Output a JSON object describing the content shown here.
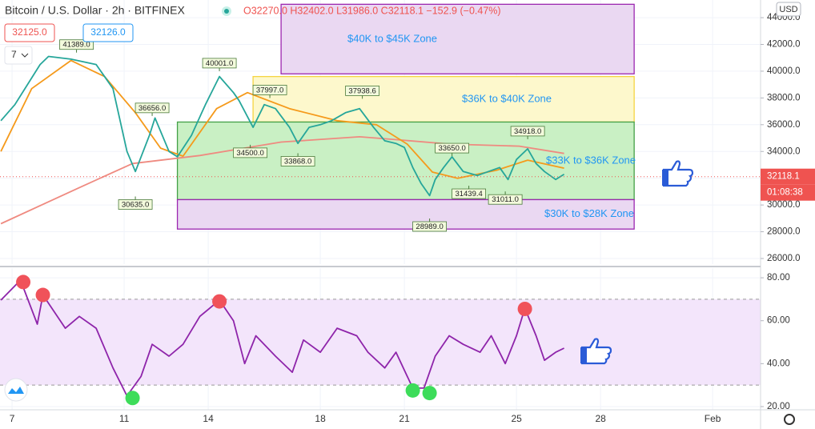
{
  "header": {
    "symbol": "Bitcoin / U.S. Dollar · 2h · BITFINEX",
    "ohlc": "O32270.0 H32402.0 L31986.0 C32118.1 −152.9 (−0.47%)",
    "sell": "32125.0",
    "buy": "32126.0",
    "interval": "7",
    "currency": "USD",
    "countdown": "01:08:38"
  },
  "chart_data": [
    {
      "type": "line",
      "xlim": [
        6.57,
        33.71
      ],
      "xticks": [
        7,
        11,
        14,
        18,
        21,
        25,
        28,
        {
          "value": 32,
          "label": "Feb"
        }
      ],
      "ylim": [
        25580,
        45320
      ],
      "yticks": [
        {
          "value": 26000,
          "label": "26000.0"
        },
        {
          "value": 28000,
          "label": "28000.0"
        },
        {
          "value": 30000,
          "label": "30000.0"
        },
        {
          "value": 32000,
          "label": "32000.0"
        },
        {
          "value": 34000,
          "label": "34000.0"
        },
        {
          "value": 36000,
          "label": "36000.0"
        },
        {
          "value": 38000,
          "label": "38000.0"
        },
        {
          "value": 40000,
          "label": "40000.0"
        },
        {
          "value": 42000,
          "label": "42000.0"
        },
        {
          "value": 44000,
          "label": "44000.0"
        }
      ],
      "grid": true,
      "series": [
        {
          "color": "#26a69a",
          "x": [
            6.6,
            7.1,
            8.0,
            8.3,
            9.1,
            10.0,
            10.6,
            11.1,
            11.4,
            11.9,
            12.1,
            12.6,
            12.9,
            13.4,
            13.9,
            14.4,
            14.9,
            15.1,
            15.6,
            16.0,
            16.4,
            16.9,
            17.2,
            17.6,
            18.0,
            18.4,
            18.9,
            19.4,
            19.9,
            20.3,
            20.7,
            21.0,
            21.3,
            21.6,
            21.9,
            22.1,
            22.4,
            22.7,
            23.1,
            23.6,
            24.0,
            24.4,
            24.7,
            25.0,
            25.4,
            25.7,
            26.0,
            26.4,
            26.7
          ],
          "values": [
            36300,
            37500,
            40500,
            41100,
            40900,
            40500,
            38700,
            34000,
            32500,
            35200,
            36500,
            34000,
            33600,
            35200,
            37500,
            39600,
            38400,
            37800,
            35800,
            37500,
            37200,
            35800,
            34600,
            35800,
            36000,
            36300,
            36900,
            37200,
            35800,
            34800,
            34600,
            34300,
            32800,
            31600,
            30700,
            31900,
            32800,
            33600,
            32500,
            32200,
            32500,
            32800,
            31900,
            33400,
            34200,
            33100,
            32500,
            31900,
            32300
          ]
        },
        {
          "color": "#f59a1b",
          "x": [
            6.6,
            7.7,
            9.1,
            10.3,
            11.4,
            12.3,
            13.1,
            14.3,
            15.4,
            16.9,
            18.6,
            20.0,
            21.1,
            22.0,
            22.9,
            24.3,
            25.4,
            26.7
          ],
          "values": [
            34000,
            38700,
            40800,
            39600,
            36900,
            34250,
            33650,
            37200,
            38400,
            37200,
            36300,
            36000,
            34550,
            32460,
            32000,
            32600,
            33350,
            32750
          ]
        },
        {
          "color": "#ef8a80",
          "x": [
            6.6,
            9.4,
            11.3,
            13.7,
            16.6,
            19.4,
            20.9,
            22.6,
            25.1,
            26.7
          ],
          "values": [
            28600,
            31300,
            33100,
            33700,
            34700,
            35100,
            34850,
            34550,
            34400,
            33850
          ]
        }
      ],
      "zones": [
        {
          "label": "$40K to $45K Zone",
          "x": [
            16.6,
            29.2
          ],
          "range": [
            39800,
            45000
          ],
          "fill": "#ead8f2",
          "stroke": "#9c27b0"
        },
        {
          "label": "$36K to $40K Zone",
          "x": [
            15.6,
            29.2
          ],
          "range": [
            36200,
            39600
          ],
          "fill": "#fdf8cc",
          "stroke": "#f5d442"
        },
        {
          "label": "$33K to $36K Zone",
          "x": [
            12.9,
            29.2
          ],
          "range": [
            30400,
            36200
          ],
          "fill": "#c9f0c4",
          "stroke": "#43a047"
        },
        {
          "label": "$30K to $28K Zone",
          "x": [
            12.9,
            29.2
          ],
          "range": [
            28200,
            30400
          ],
          "fill": "#ead8f2",
          "stroke": "#9c27b0"
        }
      ],
      "zone_text_color": "#2196f3",
      "annotations": [
        {
          "value": 41389,
          "label": "41389.0",
          "x": 9.3
        },
        {
          "value": 36656,
          "label": "36656.0",
          "x": 12.0
        },
        {
          "value": 30635,
          "label": "30635.0",
          "x": 11.4
        },
        {
          "value": 40001,
          "label": "40001.0",
          "x": 14.4
        },
        {
          "value": 34500,
          "label": "34500.0",
          "x": 15.5
        },
        {
          "value": 37997,
          "label": "37997.0",
          "x": 16.2
        },
        {
          "value": 33868,
          "label": "33868.0",
          "x": 17.2
        },
        {
          "value": 37938.6,
          "label": "37938.6",
          "x": 19.5
        },
        {
          "value": 33650,
          "label": "33650.0",
          "x": 22.7
        },
        {
          "value": 31439.4,
          "label": "31439.4",
          "x": 23.3
        },
        {
          "value": 31011,
          "label": "31011.0",
          "x": 24.6
        },
        {
          "value": 34918,
          "label": "34918.0",
          "x": 25.4
        },
        {
          "value": 28989,
          "label": "28989.0",
          "x": 21.9
        }
      ],
      "current_price": 32118.1,
      "current_color": "#ef5350"
    },
    {
      "type": "line",
      "xlim": [
        6.57,
        33.71
      ],
      "ylim": [
        18.5,
        84.5
      ],
      "yticks": [
        {
          "value": 80,
          "label": "80.00"
        },
        {
          "value": 60,
          "label": "60.00"
        },
        {
          "value": 40,
          "label": "40.00"
        },
        {
          "value": 20,
          "label": "20.00"
        }
      ],
      "band": [
        30,
        70
      ],
      "band_color": "#f3e5fb",
      "series": [
        {
          "color": "#8e24aa",
          "x": [
            6.6,
            7.3,
            7.9,
            8.1,
            8.9,
            9.4,
            10.0,
            10.6,
            11.1,
            11.6,
            12.0,
            12.6,
            13.1,
            13.7,
            14.4,
            14.9,
            15.3,
            15.7,
            16.4,
            17.0,
            17.4,
            18.0,
            18.6,
            19.3,
            19.7,
            20.3,
            20.7,
            21.3,
            21.7,
            22.1,
            22.6,
            23.1,
            23.7,
            24.1,
            24.6,
            25.0,
            25.3,
            25.7,
            26.0,
            26.4,
            26.7
          ],
          "values": [
            69.6,
            78.9,
            58.4,
            72,
            56.5,
            62,
            56.5,
            38,
            25,
            34,
            49,
            43.5,
            49,
            62,
            69.6,
            60,
            40,
            53,
            43.5,
            36,
            51,
            45.3,
            56.5,
            53,
            45.3,
            38,
            45.3,
            28.6,
            28.6,
            43.5,
            53,
            49,
            45.3,
            53,
            40,
            53,
            65.8,
            53,
            41.6,
            45.3,
            47.2
          ]
        }
      ],
      "signals": [
        {
          "x": 7.4,
          "value": 78,
          "color": "#f0525a"
        },
        {
          "x": 8.1,
          "value": 72,
          "color": "#f0525a"
        },
        {
          "x": 14.4,
          "value": 69,
          "color": "#f0525a"
        },
        {
          "x": 25.3,
          "value": 65.5,
          "color": "#f0525a"
        },
        {
          "x": 11.3,
          "value": 24,
          "color": "#3ddc5a"
        },
        {
          "x": 21.3,
          "value": 27.5,
          "color": "#3ddc5a"
        },
        {
          "x": 21.9,
          "value": 26.3,
          "color": "#3ddc5a"
        }
      ]
    }
  ]
}
